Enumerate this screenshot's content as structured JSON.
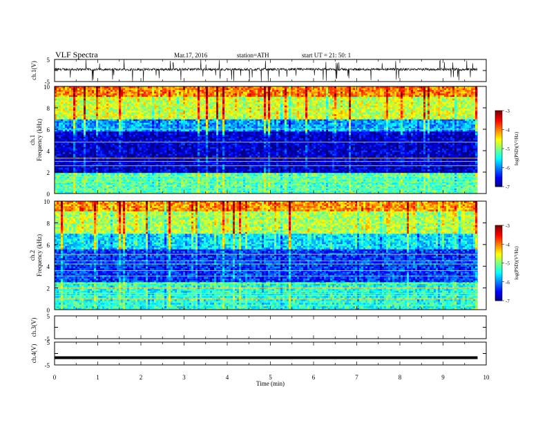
{
  "header": {
    "title": "VLF  Spectra",
    "date": "Mar.17, 2016",
    "station": "station=ATH",
    "start": "start  UT =   21: 50: 1"
  },
  "chart_data": [
    {
      "type": "line",
      "panel": "ch1-waveform",
      "ylabel": "ch.1(V)",
      "yticks": [
        "5",
        "-5"
      ],
      "ylim": [
        -5,
        5
      ],
      "xlim": [
        0,
        10
      ],
      "data_end_min": 9.8,
      "baseline_V": 0.5,
      "noise_amplitude_V": 0.7,
      "spikes": "frequent short spikes reaching about -5 V and +5 V"
    },
    {
      "type": "heatmap",
      "panel": "ch1-spectrogram",
      "ylabel_top": "ch.1",
      "ylabel": "Frequency  (kHz)",
      "ylim": [
        0,
        10
      ],
      "yticks": [
        "0",
        "2",
        "4",
        "6",
        "8",
        "10"
      ],
      "xlim": [
        0,
        10
      ],
      "data_end_min": 9.8,
      "colorbar": {
        "label": "log(PSD)(V²/Hz)",
        "ticks": [
          "-3",
          "-4",
          "-5",
          "-6",
          "-7"
        ],
        "range": [
          -7,
          -3
        ]
      },
      "bands": [
        {
          "f_from_kHz": 0,
          "f_to_kHz": 2,
          "logpsd": -5.2
        },
        {
          "f_from_kHz": 2,
          "f_to_kHz": 5.8,
          "logpsd": -6.7
        },
        {
          "f_from_kHz": 5.8,
          "f_to_kHz": 7,
          "logpsd": -5.9
        },
        {
          "f_from_kHz": 7,
          "f_to_kHz": 9,
          "logpsd": -4.7
        },
        {
          "f_from_kHz": 9,
          "f_to_kHz": 10,
          "logpsd": -4.0
        }
      ],
      "lines_kHz": [
        0.3,
        0.5,
        0.8,
        1.1,
        1.35,
        1.6,
        2.6,
        3.0,
        3.3,
        4.8,
        6.0
      ]
    },
    {
      "type": "heatmap",
      "panel": "ch2-spectrogram",
      "ylabel_top": "ch.2",
      "ylabel": "Frequency  (kHz)",
      "ylim": [
        0,
        10
      ],
      "yticks": [
        "0",
        "2",
        "4",
        "6",
        "8",
        "10"
      ],
      "xlim": [
        0,
        10
      ],
      "data_end_min": 9.8,
      "colorbar": {
        "label": "log(PSD)(V²/Hz)",
        "ticks": [
          "-3",
          "-4",
          "-5",
          "-6",
          "-7"
        ],
        "range": [
          -7,
          -3
        ]
      },
      "bands": [
        {
          "f_from_kHz": 0,
          "f_to_kHz": 2.6,
          "logpsd": -5.4
        },
        {
          "f_from_kHz": 2.6,
          "f_to_kHz": 5.6,
          "logpsd": -6.3
        },
        {
          "f_from_kHz": 5.6,
          "f_to_kHz": 7,
          "logpsd": -5.6
        },
        {
          "f_from_kHz": 7,
          "f_to_kHz": 9,
          "logpsd": -4.8
        },
        {
          "f_from_kHz": 9,
          "f_to_kHz": 10,
          "logpsd": -4.1
        }
      ],
      "lines_kHz": [
        0.4,
        0.7,
        1.0,
        1.3,
        1.5,
        2.0,
        2.4,
        3.1,
        3.6,
        4.2,
        4.5,
        5.1
      ]
    },
    {
      "type": "line",
      "panel": "ch3-waveform",
      "ylabel": "ch.3(V)",
      "yticks": [
        "5",
        "-5"
      ],
      "ylim": [
        -5,
        5
      ],
      "xlim": [
        0,
        10
      ],
      "values": "no signal plotted"
    },
    {
      "type": "line",
      "panel": "ch4-waveform",
      "ylabel": "ch.4(V)",
      "yticks": [
        "5",
        "-5"
      ],
      "ylim": [
        -5,
        5
      ],
      "xlim": [
        0,
        10
      ],
      "data_end_min": 9.8,
      "value_V": -1.8
    }
  ],
  "xaxis": {
    "label": "Time  (min)",
    "ticks": [
      "0",
      "1",
      "2",
      "3",
      "4",
      "5",
      "6",
      "7",
      "8",
      "9",
      "10"
    ],
    "range": [
      0,
      10
    ]
  }
}
